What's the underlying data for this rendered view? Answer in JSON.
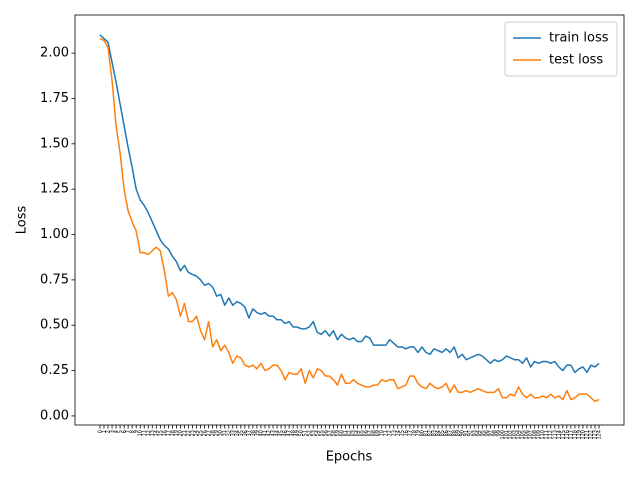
{
  "chart_data": {
    "type": "line",
    "xlabel": "Epochs",
    "ylabel": "Loss",
    "x": [
      0,
      1,
      2,
      3,
      4,
      5,
      6,
      7,
      8,
      9,
      10,
      11,
      12,
      13,
      14,
      15,
      16,
      17,
      18,
      19,
      20,
      21,
      22,
      23,
      24,
      25,
      26,
      27,
      28,
      29,
      30,
      31,
      32,
      33,
      34,
      35,
      36,
      37,
      38,
      39,
      40,
      41,
      42,
      43,
      44,
      45,
      46,
      47,
      48,
      49,
      50,
      51,
      52,
      53,
      54,
      55,
      56,
      57,
      58,
      59,
      60,
      61,
      62,
      63,
      64,
      65,
      66,
      67,
      68,
      69,
      70,
      71,
      72,
      73,
      74,
      75,
      76,
      77,
      78,
      79,
      80,
      81,
      82,
      83,
      84,
      85,
      86,
      87,
      88,
      89,
      90,
      91,
      92,
      93,
      94,
      95,
      96,
      97,
      98,
      99,
      100,
      101,
      102,
      103,
      104,
      105,
      106,
      107,
      108,
      109,
      110,
      111,
      112,
      113,
      114,
      115,
      116,
      117,
      118,
      119,
      120,
      121,
      122,
      123,
      124
    ],
    "series": [
      {
        "name": "train loss",
        "color": "#1f77b4",
        "values": [
          2.1,
          2.08,
          2.06,
          1.95,
          1.84,
          1.72,
          1.6,
          1.48,
          1.37,
          1.25,
          1.19,
          1.16,
          1.12,
          1.07,
          1.02,
          0.97,
          0.94,
          0.92,
          0.88,
          0.85,
          0.8,
          0.83,
          0.79,
          0.78,
          0.77,
          0.75,
          0.72,
          0.73,
          0.71,
          0.66,
          0.67,
          0.61,
          0.65,
          0.61,
          0.63,
          0.62,
          0.6,
          0.54,
          0.59,
          0.57,
          0.56,
          0.57,
          0.55,
          0.55,
          0.53,
          0.53,
          0.51,
          0.52,
          0.49,
          0.49,
          0.48,
          0.48,
          0.49,
          0.52,
          0.46,
          0.45,
          0.47,
          0.44,
          0.47,
          0.42,
          0.45,
          0.43,
          0.42,
          0.43,
          0.41,
          0.41,
          0.44,
          0.43,
          0.39,
          0.39,
          0.39,
          0.39,
          0.42,
          0.4,
          0.38,
          0.38,
          0.37,
          0.38,
          0.38,
          0.35,
          0.38,
          0.35,
          0.34,
          0.37,
          0.36,
          0.35,
          0.37,
          0.35,
          0.38,
          0.32,
          0.34,
          0.31,
          0.32,
          0.33,
          0.34,
          0.33,
          0.31,
          0.29,
          0.31,
          0.3,
          0.31,
          0.33,
          0.32,
          0.31,
          0.31,
          0.29,
          0.32,
          0.27,
          0.3,
          0.29,
          0.3,
          0.3,
          0.29,
          0.3,
          0.27,
          0.25,
          0.28,
          0.28,
          0.24,
          0.26,
          0.27,
          0.24,
          0.28,
          0.27,
          0.29
        ]
      },
      {
        "name": "test loss",
        "color": "#ff7f0e",
        "values": [
          2.08,
          2.07,
          2.03,
          1.85,
          1.6,
          1.45,
          1.25,
          1.13,
          1.07,
          1.02,
          0.9,
          0.9,
          0.89,
          0.91,
          0.93,
          0.91,
          0.8,
          0.66,
          0.68,
          0.64,
          0.55,
          0.62,
          0.52,
          0.52,
          0.55,
          0.47,
          0.42,
          0.52,
          0.38,
          0.42,
          0.36,
          0.39,
          0.35,
          0.29,
          0.33,
          0.32,
          0.28,
          0.27,
          0.28,
          0.26,
          0.29,
          0.25,
          0.26,
          0.28,
          0.28,
          0.25,
          0.2,
          0.24,
          0.23,
          0.23,
          0.26,
          0.18,
          0.25,
          0.21,
          0.26,
          0.25,
          0.22,
          0.22,
          0.2,
          0.17,
          0.23,
          0.18,
          0.18,
          0.2,
          0.18,
          0.17,
          0.16,
          0.16,
          0.17,
          0.17,
          0.2,
          0.19,
          0.2,
          0.2,
          0.15,
          0.16,
          0.17,
          0.22,
          0.22,
          0.18,
          0.16,
          0.15,
          0.18,
          0.16,
          0.15,
          0.16,
          0.18,
          0.13,
          0.17,
          0.13,
          0.13,
          0.14,
          0.13,
          0.14,
          0.15,
          0.14,
          0.13,
          0.13,
          0.13,
          0.15,
          0.1,
          0.1,
          0.12,
          0.11,
          0.16,
          0.12,
          0.1,
          0.12,
          0.1,
          0.1,
          0.11,
          0.1,
          0.12,
          0.1,
          0.11,
          0.09,
          0.14,
          0.09,
          0.1,
          0.12,
          0.12,
          0.12,
          0.1,
          0.08,
          0.09
        ]
      }
    ],
    "xlim": [
      -6.2,
      130.2
    ],
    "ylim": [
      -0.05,
      2.21
    ],
    "xticks": [
      0,
      1,
      2,
      3,
      4,
      5,
      6,
      7,
      8,
      9,
      10,
      11,
      12,
      13,
      14,
      15,
      16,
      17,
      18,
      19,
      20,
      21,
      22,
      23,
      24,
      25,
      26,
      27,
      28,
      29,
      30,
      31,
      32,
      33,
      34,
      35,
      36,
      37,
      38,
      39,
      40,
      41,
      42,
      43,
      44,
      45,
      46,
      47,
      48,
      49,
      50,
      51,
      52,
      53,
      54,
      55,
      56,
      57,
      58,
      59,
      60,
      61,
      62,
      63,
      64,
      65,
      66,
      67,
      68,
      69,
      70,
      71,
      72,
      73,
      74,
      75,
      76,
      77,
      78,
      79,
      80,
      81,
      82,
      83,
      84,
      85,
      86,
      87,
      88,
      89,
      90,
      91,
      92,
      93,
      94,
      95,
      96,
      97,
      98,
      99,
      100,
      101,
      102,
      103,
      104,
      105,
      106,
      107,
      108,
      109,
      110,
      111,
      112,
      113,
      114,
      115,
      116,
      117,
      118,
      119,
      120,
      121,
      122,
      123,
      124
    ],
    "yticks": [
      {
        "value": 0,
        "label": "0.00"
      },
      {
        "value": 0.25,
        "label": "0.25"
      },
      {
        "value": 0.5,
        "label": "0.50"
      },
      {
        "value": 0.75,
        "label": "0.75"
      },
      {
        "value": 1,
        "label": "1.00"
      },
      {
        "value": 1.25,
        "label": "1.25"
      },
      {
        "value": 1.5,
        "label": "1.50"
      },
      {
        "value": 1.75,
        "label": "1.75"
      },
      {
        "value": 2,
        "label": "2.00"
      }
    ],
    "legend": "upper right",
    "grid": false
  }
}
